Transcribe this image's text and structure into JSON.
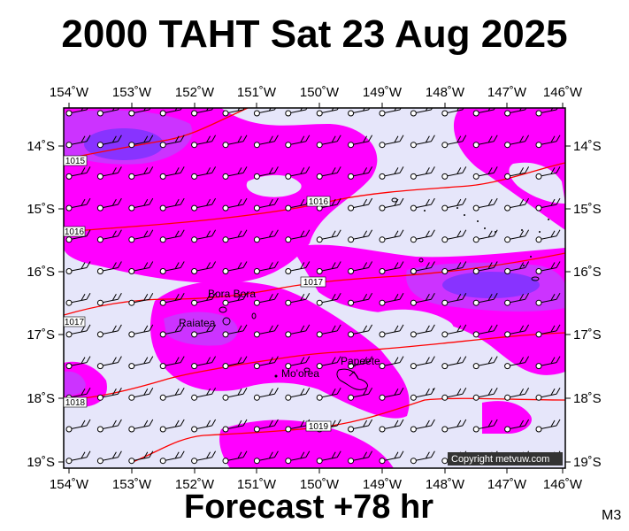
{
  "title": "2000 TAHT Sat 23 Aug 2025",
  "footer": "Forecast +78 hr",
  "code": "M3",
  "copyright": "Copyright metvuw.com",
  "lon_labels": [
    "154˚W",
    "153˚W",
    "152˚W",
    "151˚W",
    "150˚W",
    "149˚W",
    "148˚W",
    "147˚W",
    "146˚W"
  ],
  "lat_labels": [
    "14˚S",
    "15˚S",
    "16˚S",
    "17˚S",
    "18˚S",
    "19˚S"
  ],
  "places": [
    {
      "name": "Bora Bora"
    },
    {
      "name": "Raiatea"
    },
    {
      "name": "Papeete"
    },
    {
      "name": "Mo'orea"
    }
  ],
  "isobars": [
    {
      "label": "1015"
    },
    {
      "label": "1016"
    },
    {
      "label": "1016"
    },
    {
      "label": "1017"
    },
    {
      "label": "1017"
    },
    {
      "label": "1018"
    },
    {
      "label": "1019"
    }
  ],
  "colors": {
    "background_wind": "#e6e6fa",
    "moderate_wind": "#ff00ff",
    "strong_wind": "#cc33ff",
    "very_strong_wind": "#8833ff",
    "isobar": "#ff0000"
  }
}
